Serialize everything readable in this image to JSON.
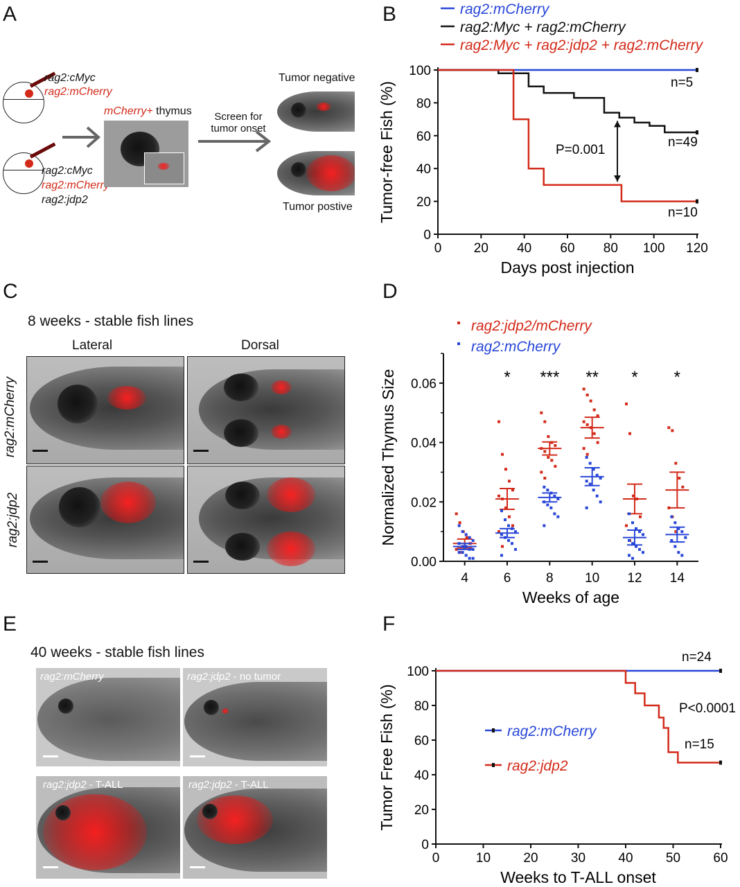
{
  "panels": {
    "A": {
      "letter": "A",
      "construct_set_1": [
        "rag2:cMyc",
        "rag2:mCherry"
      ],
      "construct_set_2": [
        "rag2:cMyc",
        "rag2:mCherry",
        "rag2:jdp2"
      ],
      "thymus_label_red": "mCherry+",
      "thymus_label_black": " thymus",
      "screen_label_line1": "Screen for",
      "screen_label_line2": "tumor onset",
      "tumor_negative": "Tumor negative",
      "tumor_positive": "Tumor postive"
    },
    "C": {
      "letter": "C",
      "title": "8 weeks - stable fish lines",
      "col_lateral": "Lateral",
      "col_dorsal": "Dorsal",
      "row_1": "rag2:mCherry",
      "row_2": "rag2:jdp2"
    },
    "E": {
      "letter": "E",
      "title": "40 weeks - stable fish lines",
      "img1_label": "rag2:mCherry",
      "img2_label_it": "rag2:jdp2",
      "img2_label_rest": " - no tumor",
      "img3_label_it": "rag2:jdp2",
      "img3_label_rest": " - T-ALL",
      "img4_label_it": "rag2:jdp2",
      "img4_label_rest": " - T-ALL"
    }
  },
  "colors": {
    "red": "#d32a1a",
    "blue": "#2846d8",
    "black": "#111111"
  },
  "chart_data": [
    {
      "panel": "B",
      "type": "line",
      "step": true,
      "xlabel": "Days post injection",
      "ylabel": "Tumor-free Fish (%)",
      "xlim": [
        0,
        120
      ],
      "ylim": [
        0,
        100
      ],
      "xticks": [
        0,
        20,
        40,
        60,
        80,
        100,
        120
      ],
      "yticks": [
        0,
        20,
        40,
        60,
        80,
        100
      ],
      "legend_position": "top",
      "series": [
        {
          "name": "rag2:mCherry",
          "color": "#2846d8",
          "label": "n=5",
          "points": [
            [
              0,
              100
            ],
            [
              120,
              100
            ]
          ]
        },
        {
          "name": "rag2:Myc + rag2:mCherry",
          "color": "#111111",
          "label": "n=49",
          "points": [
            [
              0,
              100
            ],
            [
              28,
              100
            ],
            [
              28,
              98
            ],
            [
              42,
              98
            ],
            [
              42,
              90
            ],
            [
              49,
              90
            ],
            [
              49,
              86
            ],
            [
              63,
              86
            ],
            [
              63,
              83
            ],
            [
              77,
              83
            ],
            [
              77,
              74
            ],
            [
              84,
              74
            ],
            [
              84,
              71
            ],
            [
              91,
              71
            ],
            [
              91,
              68
            ],
            [
              98,
              68
            ],
            [
              98,
              66
            ],
            [
              105,
              66
            ],
            [
              105,
              62
            ],
            [
              120,
              62
            ]
          ]
        },
        {
          "name": "rag2:Myc + rag2:jdp2 + rag2:mCherry",
          "color": "#d32a1a",
          "label": "n=10",
          "points": [
            [
              0,
              100
            ],
            [
              35,
              100
            ],
            [
              35,
              70
            ],
            [
              42,
              70
            ],
            [
              42,
              40
            ],
            [
              49,
              40
            ],
            [
              49,
              30
            ],
            [
              85,
              30
            ],
            [
              85,
              20
            ],
            [
              120,
              20
            ]
          ]
        }
      ],
      "annotation": "P=0.001"
    },
    {
      "panel": "D",
      "type": "scatter",
      "xlabel": "Weeks of age",
      "ylabel": "Normalized Thymus Size",
      "xlim": [
        3,
        15
      ],
      "ylim": [
        0,
        0.07
      ],
      "categories": [
        "4",
        "6",
        "8",
        "10",
        "12",
        "14"
      ],
      "yticks": [
        "0.00",
        "0.02",
        "0.04",
        "0.06"
      ],
      "legend_position": "top",
      "significance": [
        "",
        "*",
        "***",
        "**",
        "*",
        "*"
      ],
      "series": [
        {
          "name": "rag2:jdp2/mCherry",
          "color": "#d32a1a",
          "means": [
            0.006,
            0.021,
            0.038,
            0.045,
            0.021,
            0.024
          ],
          "errors": [
            0.0015,
            0.0035,
            0.0022,
            0.0035,
            0.005,
            0.006
          ],
          "points": [
            [
              0.016,
              0.013,
              0.01,
              0.008,
              0.006,
              0.004,
              0.003
            ],
            [
              0.047,
              0.036,
              0.031,
              0.027,
              0.024,
              0.022,
              0.021,
              0.018,
              0.015,
              0.012,
              0.01,
              0.005
            ],
            [
              0.05,
              0.047,
              0.042,
              0.04,
              0.039,
              0.038,
              0.037,
              0.035,
              0.034,
              0.032,
              0.03,
              0.028
            ],
            [
              0.058,
              0.056,
              0.054,
              0.051,
              0.049,
              0.047,
              0.046,
              0.045,
              0.043,
              0.04,
              0.038,
              0.036
            ],
            [
              0.053,
              0.043,
              0.022,
              0.021,
              0.015,
              0.012,
              0.007
            ],
            [
              0.045,
              0.044,
              0.033,
              0.028,
              0.025,
              0.018,
              0.015,
              0.01
            ]
          ]
        },
        {
          "name": "rag2:mCherry",
          "color": "#2846d8",
          "means": [
            0.005,
            0.0095,
            0.0215,
            0.0285,
            0.008,
            0.009
          ],
          "errors": [
            0.001,
            0.0015,
            0.0015,
            0.003,
            0.0025,
            0.0025
          ],
          "points": [
            [
              0.012,
              0.01,
              0.009,
              0.008,
              0.007,
              0.006,
              0.005,
              0.005,
              0.004,
              0.004,
              0.003,
              0.003,
              0.002,
              0.001,
              0.001
            ],
            [
              0.017,
              0.014,
              0.012,
              0.011,
              0.01,
              0.009,
              0.008,
              0.007,
              0.006,
              0.004,
              0.002
            ],
            [
              0.025,
              0.024,
              0.023,
              0.022,
              0.021,
              0.02,
              0.019,
              0.018,
              0.016,
              0.015,
              0.012
            ],
            [
              0.035,
              0.033,
              0.031,
              0.029,
              0.028,
              0.027,
              0.026,
              0.024,
              0.022,
              0.02,
              0.018
            ],
            [
              0.016,
              0.013,
              0.011,
              0.01,
              0.009,
              0.007,
              0.006,
              0.005,
              0.004,
              0.003,
              0.002,
              0.001
            ],
            [
              0.015,
              0.013,
              0.011,
              0.01,
              0.008,
              0.007,
              0.005,
              0.003,
              0.002
            ]
          ]
        }
      ]
    },
    {
      "panel": "F",
      "type": "line",
      "step": true,
      "xlabel": "Weeks to T-ALL onset",
      "ylabel": "Tumor Free Fish (%)",
      "xlim": [
        0,
        60
      ],
      "ylim": [
        0,
        100
      ],
      "xticks": [
        0,
        10,
        20,
        30,
        40,
        50,
        60
      ],
      "yticks": [
        0,
        20,
        40,
        60,
        80,
        100
      ],
      "legend_position": "center-left",
      "series": [
        {
          "name": "rag2:mCherry",
          "color": "#2846d8",
          "label": "n=24",
          "points": [
            [
              0,
              100
            ],
            [
              60,
              100
            ]
          ]
        },
        {
          "name": "rag2:jdp2",
          "color": "#d32a1a",
          "label": "n=15",
          "points": [
            [
              0,
              100
            ],
            [
              40,
              100
            ],
            [
              40,
              93
            ],
            [
              42,
              93
            ],
            [
              42,
              87
            ],
            [
              44,
              87
            ],
            [
              44,
              80
            ],
            [
              47,
              80
            ],
            [
              47,
              73
            ],
            [
              48,
              73
            ],
            [
              48,
              67
            ],
            [
              49,
              67
            ],
            [
              49,
              53
            ],
            [
              51,
              53
            ],
            [
              51,
              47
            ],
            [
              60,
              47
            ]
          ]
        }
      ],
      "annotation": "P<0.0001"
    }
  ]
}
